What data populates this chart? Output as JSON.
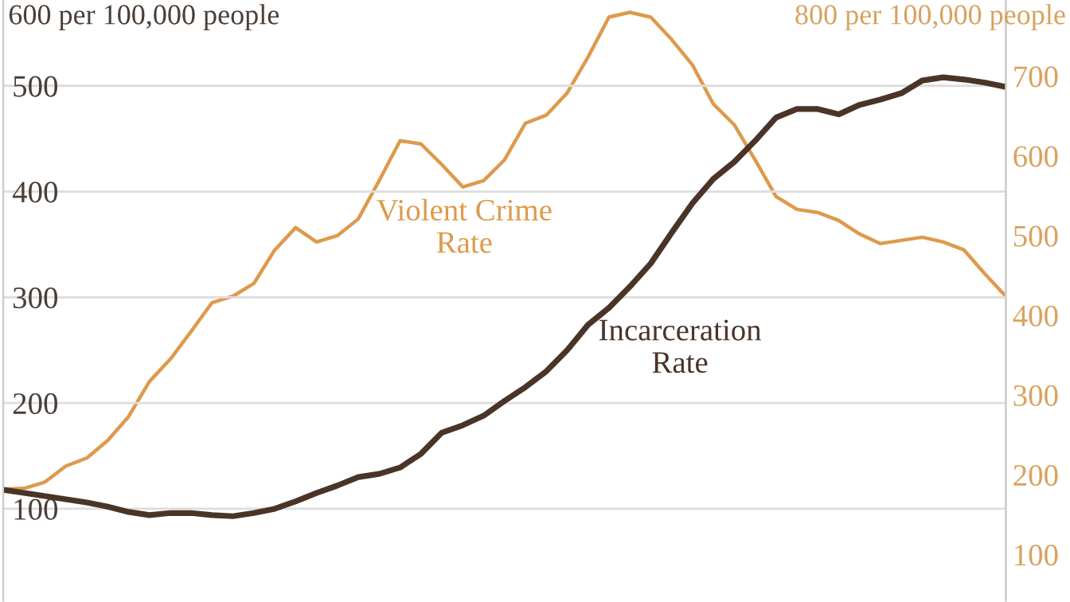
{
  "chart_data": {
    "type": "line",
    "categories": [
      null,
      null,
      null,
      null,
      null,
      null,
      null,
      null,
      null,
      null,
      null,
      null,
      null,
      null,
      null,
      null,
      null,
      null,
      null,
      null,
      null,
      null,
      null,
      null,
      null,
      null,
      null,
      null,
      null,
      null,
      null,
      null,
      null,
      null,
      null,
      null,
      null,
      null,
      null,
      null,
      null,
      null,
      null,
      null,
      null,
      null,
      null,
      null,
      null
    ],
    "series": [
      {
        "name": "Violent Crime Rate",
        "color": "#dd9a4c",
        "axis": "y2",
        "values": [
          182,
          183,
          191,
          211,
          221,
          243,
          273,
          317,
          345,
          380,
          416,
          424,
          440,
          482,
          510,
          492,
          500,
          521,
          569,
          619,
          615,
          589,
          561,
          569,
          595,
          641,
          651,
          679,
          724,
          774,
          780,
          774,
          746,
          714,
          665,
          639,
          595,
          549,
          533,
          529,
          519,
          502,
          490,
          494,
          498,
          492,
          482,
          452,
          424
        ]
      },
      {
        "name": "Incarceration Rate",
        "color": "#4a3428",
        "values": [
          118,
          115,
          112,
          109,
          106,
          102,
          97,
          94,
          96,
          96,
          94,
          93,
          96,
          100,
          107,
          115,
          122,
          130,
          133,
          139,
          152,
          172,
          179,
          188,
          202,
          215,
          230,
          250,
          274,
          290,
          310,
          332,
          361,
          389,
          412,
          428,
          448,
          470,
          478,
          478,
          473,
          482,
          487,
          493,
          505,
          508,
          506,
          503,
          499
        ]
      }
    ],
    "ylabel": "600 per 100,000 people",
    "y2label": "800 per 100,000 people",
    "ylim": [
      13,
      580
    ],
    "yticks": [
      100,
      200,
      300,
      400,
      500
    ],
    "y2lim": [
      42,
      794
    ],
    "y2ticks": [
      100,
      200,
      300,
      400,
      500,
      600,
      700
    ],
    "grid": "y",
    "legend": false
  }
}
